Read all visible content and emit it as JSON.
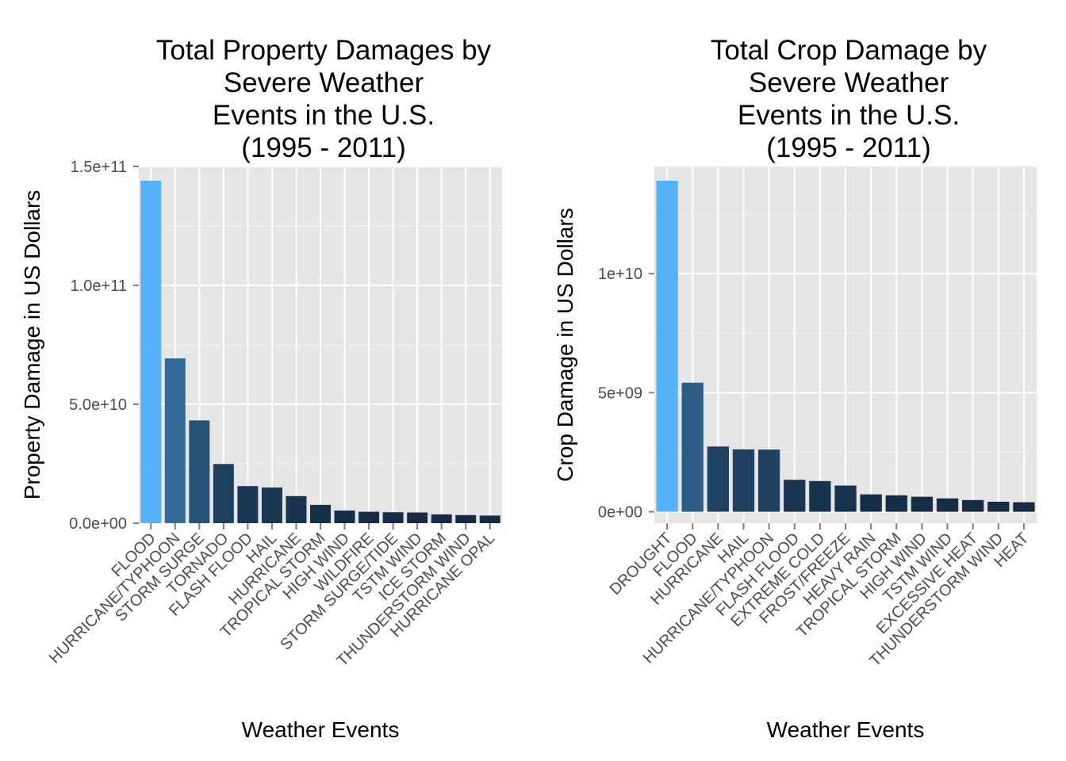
{
  "colors": {
    "panel_bg": "#e5e5e5",
    "grid_major": "#ffffff",
    "grid_minor": "#f2f2f2",
    "tick_text": "#4d4d4d",
    "bar_low": "#132b43",
    "bar_high": "#56b1f7"
  },
  "chart_data": [
    {
      "type": "bar",
      "title": [
        "Total Property Damages by",
        "Severe Weather",
        "Events in the U.S.",
        "(1995 - 2011)"
      ],
      "xlabel": "Weather Events",
      "ylabel": "Property Damage in US Dollars",
      "ylim": [
        0,
        150000000000
      ],
      "yticks": [
        0,
        50000000000,
        100000000000,
        150000000000
      ],
      "ytick_labels": [
        "0.0e+00",
        "5.0e+10",
        "1.0e+11",
        "1.5e+11"
      ],
      "grid": true,
      "legend": "none",
      "categories": [
        "FLOOD",
        "HURRICANE/TYPHOON",
        "STORM SURGE",
        "TORNADO",
        "FLASH FLOOD",
        "HAIL",
        "HURRICANE",
        "TROPICAL STORM",
        "HIGH WIND",
        "WILDFIRE",
        "STORM SURGE/TIDE",
        "TSTM WIND",
        "ICE STORM",
        "THUNDERSTORM WIND",
        "HURRICANE OPAL"
      ],
      "values": [
        144000000000,
        69300000000,
        43200000000,
        24900000000,
        15600000000,
        15000000000,
        11400000000,
        7700000000,
        5300000000,
        4800000000,
        4600000000,
        4500000000,
        3700000000,
        3400000000,
        3200000000
      ]
    },
    {
      "type": "bar",
      "title": [
        "Total Crop Damage by",
        "Severe Weather",
        "Events in the U.S.",
        "(1995 - 2011)"
      ],
      "xlabel": "Weather Events",
      "ylabel": "Crop Damage in US Dollars",
      "ylim": [
        -480000000,
        14500000000
      ],
      "yticks": [
        0,
        5000000000,
        10000000000
      ],
      "ytick_labels": [
        "0e+00",
        "5e+09",
        "1e+10"
      ],
      "grid": true,
      "legend": "none",
      "categories": [
        "DROUGHT",
        "FLOOD",
        "HURRICANE",
        "HAIL",
        "HURRICANE/TYPHOON",
        "FLASH FLOOD",
        "EXTREME COLD",
        "FROST/FREEZE",
        "HEAVY RAIN",
        "TROPICAL STORM",
        "HIGH WIND",
        "TSTM WIND",
        "EXCESSIVE HEAT",
        "THUNDERSTORM WIND",
        "HEAT"
      ],
      "values": [
        13900000000,
        5420000000,
        2740000000,
        2620000000,
        2610000000,
        1340000000,
        1290000000,
        1100000000,
        730000000,
        690000000,
        630000000,
        560000000,
        490000000,
        420000000,
        400000000
      ]
    }
  ]
}
